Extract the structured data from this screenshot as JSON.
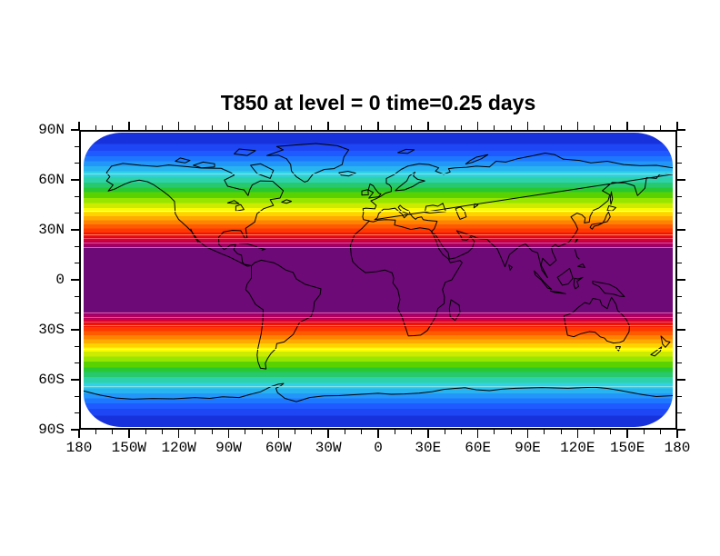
{
  "title": "T850 at level = 0 time=0.25 days",
  "colors": {
    "background": "#ffffff",
    "axis": "#000000",
    "coastline": "#000000",
    "title_color": "#000000"
  },
  "chart_data": {
    "type": "heatmap",
    "subtype": "filled-contour-world-map",
    "title": "T850 at level = 0 time=0.25 days",
    "variable": "T850",
    "level": "0",
    "time": "0.25 days",
    "projection": "cylindrical equidistant, rounded map boundary, coastlines overlaid",
    "legend": "none (no labelbar shown)",
    "field_structure": "zonally symmetric temperature bands: warm purple core within ~20N-20S, cooling poleward through red, orange, yellow, green, cyan to deep blue at the poles",
    "grid": "off",
    "x_axis": {
      "range_deg": [
        -180,
        180
      ],
      "minor_tick_step_deg": 10,
      "major_tick_step_deg": 30,
      "ticks": [
        {
          "lon": -180,
          "label": "180"
        },
        {
          "lon": -150,
          "label": "150W"
        },
        {
          "lon": -120,
          "label": "120W"
        },
        {
          "lon": -90,
          "label": "90W"
        },
        {
          "lon": -60,
          "label": "60W"
        },
        {
          "lon": -30,
          "label": "30W"
        },
        {
          "lon": 0,
          "label": "0"
        },
        {
          "lon": 30,
          "label": "30E"
        },
        {
          "lon": 60,
          "label": "60E"
        },
        {
          "lon": 90,
          "label": "90E"
        },
        {
          "lon": 120,
          "label": "120E"
        },
        {
          "lon": 150,
          "label": "150E"
        },
        {
          "lon": 180,
          "label": "180"
        }
      ]
    },
    "y_axis": {
      "range_deg": [
        -90,
        90
      ],
      "minor_tick_step_deg": 10,
      "major_tick_step_deg": 30,
      "ticks": [
        {
          "lat": 90,
          "label": "90N"
        },
        {
          "lat": 60,
          "label": "60N"
        },
        {
          "lat": 30,
          "label": "30N"
        },
        {
          "lat": 0,
          "label": "0"
        },
        {
          "lat": -30,
          "label": "30S"
        },
        {
          "lat": -60,
          "label": "60S"
        },
        {
          "lat": -90,
          "label": "90S"
        }
      ]
    },
    "bands_format": [
      "lat_from",
      "lat_to",
      "fill_color"
    ],
    "bands": [
      [
        90,
        83,
        "#1732dc"
      ],
      [
        83,
        79,
        "#1e46f5"
      ],
      [
        79,
        75.5,
        "#1e5aff"
      ],
      [
        75.5,
        72.5,
        "#1e78ff"
      ],
      [
        72.5,
        69.5,
        "#2396fa"
      ],
      [
        69.5,
        66.5,
        "#28b4f0"
      ],
      [
        66.5,
        63,
        "#32d2e6"
      ],
      [
        63,
        59.5,
        "#2dd2aa"
      ],
      [
        59.5,
        56.5,
        "#28c86e"
      ],
      [
        56.5,
        53.5,
        "#28c832"
      ],
      [
        53.5,
        50,
        "#5ad200"
      ],
      [
        50,
        47,
        "#96e600"
      ],
      [
        47,
        44,
        "#cdeb00"
      ],
      [
        44,
        41.5,
        "#fafa00"
      ],
      [
        41.5,
        39,
        "#ffd200"
      ],
      [
        39,
        36.5,
        "#ffaa00"
      ],
      [
        36.5,
        34,
        "#ff8200"
      ],
      [
        34,
        31.5,
        "#ff5a00"
      ],
      [
        31.5,
        29,
        "#ff3700"
      ],
      [
        29,
        26.5,
        "#f01400"
      ],
      [
        26.5,
        24,
        "#d70032"
      ],
      [
        24,
        21.5,
        "#b4005a"
      ],
      [
        21.5,
        19.5,
        "#96006e"
      ],
      [
        19.5,
        -19.5,
        "#6e0a78"
      ],
      [
        -19.5,
        -21.5,
        "#96006e"
      ],
      [
        -21.5,
        -24,
        "#b4005a"
      ],
      [
        -24,
        -26.5,
        "#d70032"
      ],
      [
        -26.5,
        -29,
        "#f01400"
      ],
      [
        -29,
        -31.5,
        "#ff3700"
      ],
      [
        -31.5,
        -34,
        "#ff5a00"
      ],
      [
        -34,
        -36.5,
        "#ff8200"
      ],
      [
        -36.5,
        -39,
        "#ffaa00"
      ],
      [
        -39,
        -41.5,
        "#ffd200"
      ],
      [
        -41.5,
        -44,
        "#fafa00"
      ],
      [
        -44,
        -47,
        "#cdeb00"
      ],
      [
        -47,
        -50,
        "#96e600"
      ],
      [
        -50,
        -53.5,
        "#5ad200"
      ],
      [
        -53.5,
        -56.5,
        "#28c832"
      ],
      [
        -56.5,
        -59.5,
        "#28c86e"
      ],
      [
        -59.5,
        -63,
        "#2dd2aa"
      ],
      [
        -63,
        -66.5,
        "#32d2e6"
      ],
      [
        -66.5,
        -69.5,
        "#28b4f0"
      ],
      [
        -69.5,
        -72.5,
        "#2396fa"
      ],
      [
        -72.5,
        -75.5,
        "#1e78ff"
      ],
      [
        -75.5,
        -79,
        "#1e5aff"
      ],
      [
        -79,
        -83,
        "#1e46f5"
      ],
      [
        -83,
        -90,
        "#1732dc"
      ]
    ],
    "hairline_contours_format": [
      "lat",
      "line_color"
    ],
    "hairline_contours": [
      [
        64.8,
        "#8fe6e6"
      ],
      [
        42.5,
        "#ffff9e"
      ],
      [
        27.9,
        "#ff8c73"
      ],
      [
        25.4,
        "#f55a6e"
      ],
      [
        22.7,
        "#e65a96"
      ],
      [
        20.2,
        "#cd7dc8"
      ],
      [
        -20.2,
        "#cd7dc8"
      ],
      [
        -22.7,
        "#e65a96"
      ],
      [
        -25.4,
        "#f55a6e"
      ],
      [
        -27.9,
        "#ff8c73"
      ],
      [
        -42.5,
        "#ffff9e"
      ],
      [
        -64.8,
        "#8fe6e6"
      ]
    ]
  }
}
